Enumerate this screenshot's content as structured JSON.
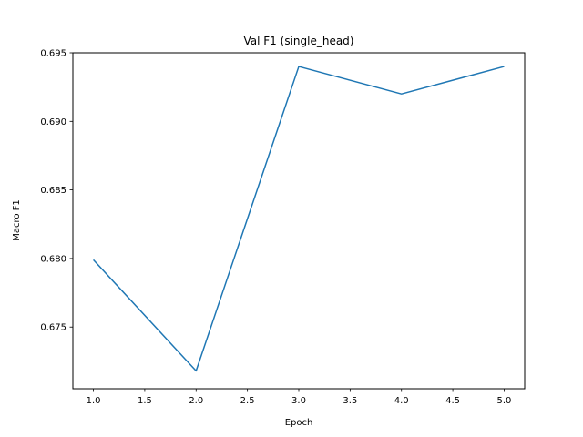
{
  "chart_data": {
    "type": "line",
    "title": "Val F1 (single_head)",
    "xlabel": "Epoch",
    "ylabel": "Macro F1",
    "xlim": [
      0.8,
      5.2
    ],
    "ylim": [
      0.6705,
      0.695
    ],
    "xticks": [
      1.0,
      1.5,
      2.0,
      2.5,
      3.0,
      3.5,
      4.0,
      4.5,
      5.0
    ],
    "xtick_labels": [
      "1.0",
      "1.5",
      "2.0",
      "2.5",
      "3.0",
      "3.5",
      "4.0",
      "4.5",
      "5.0"
    ],
    "yticks": [
      0.675,
      0.68,
      0.685,
      0.69,
      0.695
    ],
    "ytick_labels": [
      "0.675",
      "0.680",
      "0.685",
      "0.690",
      "0.695"
    ],
    "grid": false,
    "series": [
      {
        "color": "#1f77b4",
        "x": [
          1,
          2,
          3,
          4,
          5
        ],
        "y": [
          0.6799,
          0.6718,
          0.694,
          0.692,
          0.694
        ]
      }
    ]
  }
}
